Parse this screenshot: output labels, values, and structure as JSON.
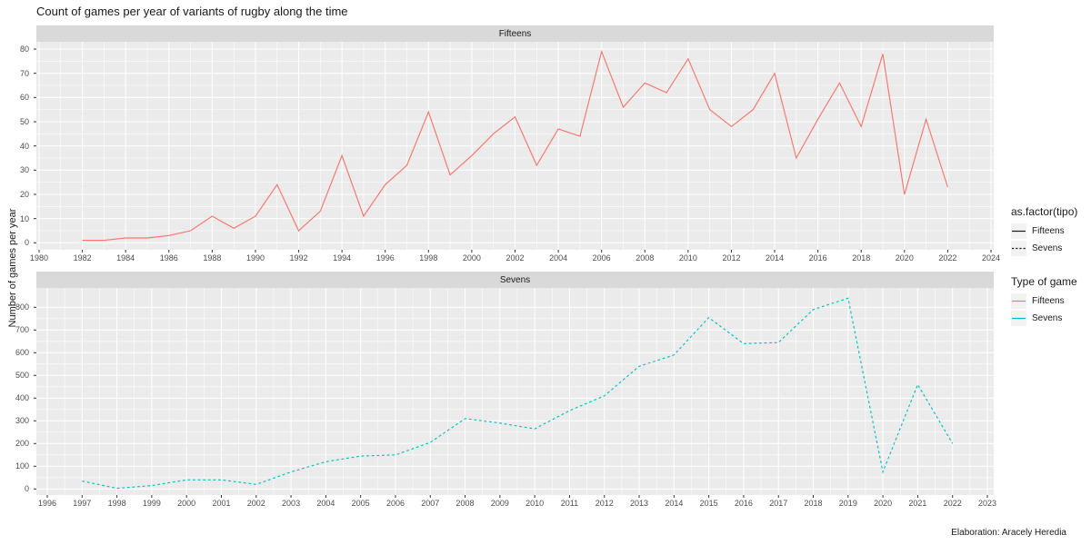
{
  "title": "Count of games per year of variants of rugby along the time",
  "caption": "Elaboration: Aracely Heredia",
  "colors": {
    "fifteens_line": "#F8766D",
    "sevens_line": "#00BFC4",
    "panel_background": "#EBEBEB",
    "strip_background": "#D9D9D9",
    "grid_major": "#FFFFFF",
    "axis_text": "#4D4D4D",
    "tick_mark": "#333333",
    "legend_key_background": "#F2F2F2"
  },
  "legend_linetype": {
    "title": "as.factor(tipo)",
    "items": [
      {
        "label": "Fifteens",
        "linetype": "solid"
      },
      {
        "label": "Sevens",
        "linetype": "dashed"
      }
    ]
  },
  "legend_color": {
    "title": "Type of game",
    "items": [
      {
        "label": "Fifteens",
        "color": "#F8766D"
      },
      {
        "label": "Sevens",
        "color": "#00BFC4"
      }
    ]
  },
  "chart_data": [
    {
      "type": "line",
      "facet_label": "Fifteens",
      "ylabel": "Number of games per year",
      "xlabel": "",
      "grid": true,
      "legend_position": "right",
      "xlim": [
        1980,
        2024
      ],
      "ylim": [
        0,
        80
      ],
      "x_ticks": [
        1980,
        1982,
        1984,
        1986,
        1988,
        1990,
        1992,
        1994,
        1996,
        1998,
        2000,
        2002,
        2004,
        2006,
        2008,
        2010,
        2012,
        2014,
        2016,
        2018,
        2020,
        2022,
        2024
      ],
      "y_ticks": [
        0,
        10,
        20,
        30,
        40,
        50,
        60,
        70,
        80
      ],
      "series": [
        {
          "name": "Fifteens",
          "color": "#F8766D",
          "linetype": "solid",
          "x": [
            1982,
            1983,
            1984,
            1985,
            1986,
            1987,
            1988,
            1989,
            1990,
            1991,
            1992,
            1993,
            1994,
            1995,
            1996,
            1997,
            1998,
            1999,
            2000,
            2001,
            2002,
            2003,
            2004,
            2005,
            2006,
            2007,
            2008,
            2009,
            2010,
            2011,
            2012,
            2013,
            2014,
            2015,
            2016,
            2017,
            2018,
            2019,
            2020,
            2021,
            2022
          ],
          "values": [
            1,
            1,
            2,
            2,
            3,
            5,
            11,
            6,
            11,
            24,
            5,
            13,
            36,
            11,
            24,
            32,
            54,
            28,
            36,
            45,
            52,
            32,
            47,
            44,
            79,
            56,
            66,
            62,
            76,
            55,
            48,
            55,
            70,
            35,
            51,
            66,
            48,
            78,
            20,
            51,
            23
          ]
        }
      ]
    },
    {
      "type": "line",
      "facet_label": "Sevens",
      "ylabel": "Number of games per year",
      "xlabel": "",
      "grid": true,
      "legend_position": "right",
      "xlim": [
        1996,
        2023
      ],
      "ylim": [
        0,
        800
      ],
      "x_ticks": [
        1996,
        1997,
        1998,
        1999,
        2000,
        2001,
        2002,
        2003,
        2004,
        2005,
        2006,
        2007,
        2008,
        2009,
        2010,
        2011,
        2012,
        2013,
        2014,
        2015,
        2016,
        2017,
        2018,
        2019,
        2020,
        2021,
        2022,
        2023
      ],
      "y_ticks": [
        0,
        100,
        200,
        300,
        400,
        500,
        600,
        700,
        800
      ],
      "series": [
        {
          "name": "Sevens",
          "color": "#00BFC4",
          "linetype": "dashed",
          "x": [
            1997,
            1998,
            1999,
            2000,
            2001,
            2002,
            2003,
            2004,
            2005,
            2006,
            2007,
            2008,
            2009,
            2010,
            2011,
            2012,
            2013,
            2014,
            2015,
            2016,
            2017,
            2018,
            2019,
            2020,
            2021,
            2022
          ],
          "values": [
            35,
            3,
            15,
            40,
            40,
            20,
            75,
            120,
            145,
            150,
            205,
            310,
            290,
            265,
            345,
            410,
            540,
            590,
            755,
            640,
            645,
            790,
            840,
            75,
            460,
            200
          ]
        }
      ]
    }
  ]
}
